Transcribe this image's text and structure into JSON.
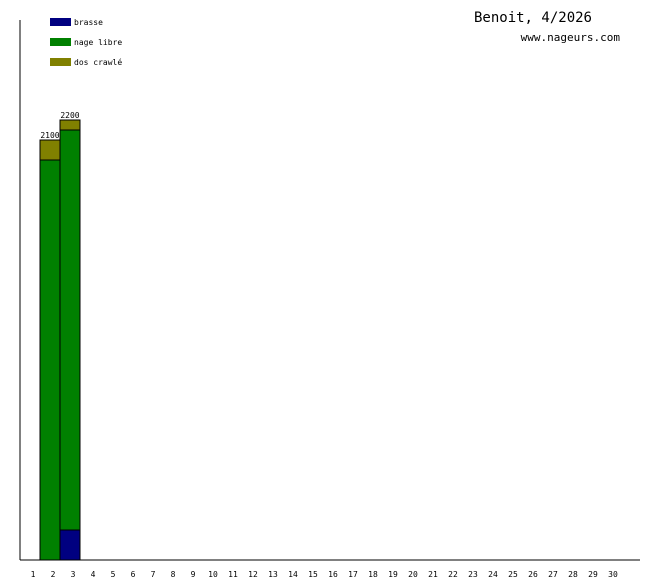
{
  "chart_data": {
    "type": "bar",
    "stacked": true,
    "title": "Benoit, 4/2026",
    "subtitle": "www.nageurs.com",
    "categories": [
      "1",
      "2",
      "3",
      "4",
      "5",
      "6",
      "7",
      "8",
      "9",
      "10",
      "11",
      "12",
      "13",
      "14",
      "15",
      "16",
      "17",
      "18",
      "19",
      "20",
      "21",
      "22",
      "23",
      "24",
      "25",
      "26",
      "27",
      "28",
      "29",
      "30"
    ],
    "series": [
      {
        "name": "brasse",
        "color": "#000080",
        "values": [
          0,
          0,
          150,
          0,
          0,
          0,
          0,
          0,
          0,
          0,
          0,
          0,
          0,
          0,
          0,
          0,
          0,
          0,
          0,
          0,
          0,
          0,
          0,
          0,
          0,
          0,
          0,
          0,
          0,
          0
        ]
      },
      {
        "name": "nage libre",
        "color": "#008000",
        "values": [
          0,
          2000,
          2000,
          0,
          0,
          0,
          0,
          0,
          0,
          0,
          0,
          0,
          0,
          0,
          0,
          0,
          0,
          0,
          0,
          0,
          0,
          0,
          0,
          0,
          0,
          0,
          0,
          0,
          0,
          0
        ]
      },
      {
        "name": "dos crawlé",
        "color": "#808000",
        "values": [
          0,
          100,
          50,
          0,
          0,
          0,
          0,
          0,
          0,
          0,
          0,
          0,
          0,
          0,
          0,
          0,
          0,
          0,
          0,
          0,
          0,
          0,
          0,
          0,
          0,
          0,
          0,
          0,
          0,
          0
        ]
      }
    ],
    "totals": [
      "",
      "2100",
      "2200",
      "",
      "",
      "",
      "",
      "",
      "",
      "",
      "",
      "",
      "",
      "",
      "",
      "",
      "",
      "",
      "",
      "",
      "",
      "",
      "",
      "",
      "",
      "",
      "",
      "",
      "",
      ""
    ],
    "ylim": [
      0,
      2200
    ],
    "xlabel": "",
    "ylabel": "",
    "grid": false,
    "legend_position": "top-left"
  }
}
